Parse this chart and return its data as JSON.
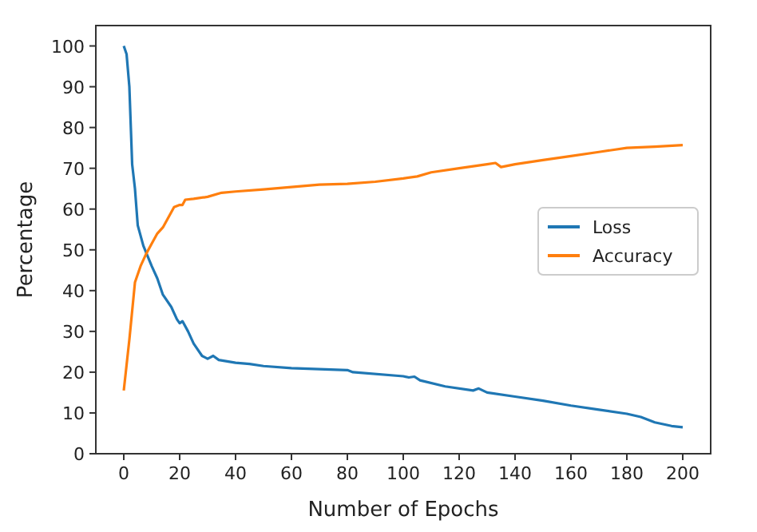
{
  "chart_data": {
    "type": "line",
    "xlabel": "Number of Epochs",
    "ylabel": "Percentage",
    "xlim": [
      -10,
      210
    ],
    "ylim": [
      0,
      105
    ],
    "xticks": [
      0,
      20,
      40,
      60,
      80,
      100,
      120,
      140,
      160,
      180,
      200
    ],
    "yticks": [
      0,
      10,
      20,
      30,
      40,
      50,
      60,
      70,
      80,
      90,
      100
    ],
    "grid": false,
    "legend": "right",
    "series": [
      {
        "name": "Loss",
        "color": "#1f77b4",
        "x": [
          0,
          1,
          2,
          3,
          4,
          5,
          7,
          10,
          12,
          14,
          17,
          19,
          20,
          21,
          23,
          25,
          28,
          30,
          32,
          34,
          40,
          45,
          50,
          60,
          80,
          82,
          100,
          102,
          104,
          106,
          115,
          125,
          127,
          130,
          140,
          150,
          160,
          170,
          180,
          185,
          190,
          196,
          200
        ],
        "values": [
          100,
          98,
          90,
          71,
          65,
          56,
          51,
          46,
          43,
          39,
          36,
          33,
          32,
          32.5,
          30,
          27,
          24,
          23.3,
          24,
          23,
          22.3,
          22,
          21.5,
          21,
          20.5,
          20,
          19,
          18.7,
          18.9,
          18,
          16.5,
          15.5,
          16,
          15,
          14,
          13,
          11.8,
          10.8,
          9.8,
          9,
          7.7,
          6.8,
          6.5
        ]
      },
      {
        "name": "Accuracy",
        "color": "#ff7f0e",
        "x": [
          0,
          2,
          4,
          6,
          8,
          10,
          12,
          14,
          16,
          18,
          20,
          21,
          22,
          25,
          30,
          35,
          40,
          50,
          60,
          70,
          80,
          90,
          100,
          105,
          110,
          120,
          130,
          133,
          135,
          140,
          150,
          160,
          170,
          180,
          190,
          200
        ],
        "values": [
          15.5,
          28,
          42,
          46,
          49,
          51.5,
          54,
          55.5,
          58,
          60.5,
          61,
          61,
          62.3,
          62.5,
          63,
          64,
          64.3,
          64.8,
          65.4,
          66,
          66.2,
          66.7,
          67.5,
          68,
          69,
          70,
          71,
          71.3,
          70.3,
          71,
          72,
          73,
          74,
          75,
          75.3,
          75.7
        ]
      }
    ]
  }
}
